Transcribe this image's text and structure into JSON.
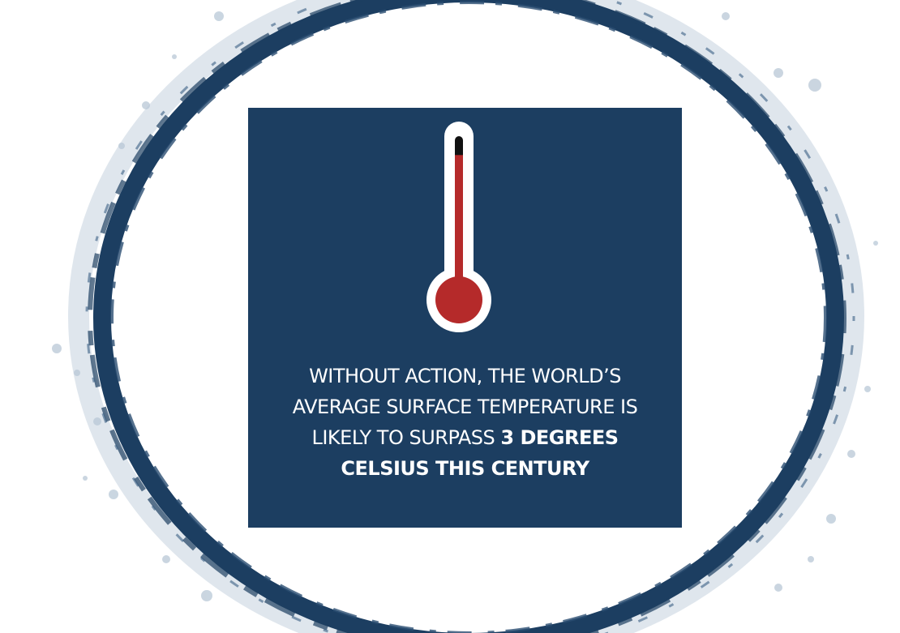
{
  "colors": {
    "navy": "#1c3e61",
    "mercury_red": "#b52a2a",
    "mercury_top": "#111111",
    "text": "#ffffff",
    "background": "#ffffff"
  },
  "illustration": {
    "icon": "thermometer-icon",
    "fill_fraction": 0.88
  },
  "caption": {
    "line1": "WITHOUT ACTION, THE WORLD’S",
    "line2": "AVERAGE SURFACE TEMPERATURE IS",
    "line3_regular": "LIKELY TO SURPASS ",
    "line3_bold": "3 DEGREES",
    "line4_bold": "CELSIUS THIS CENTURY"
  }
}
